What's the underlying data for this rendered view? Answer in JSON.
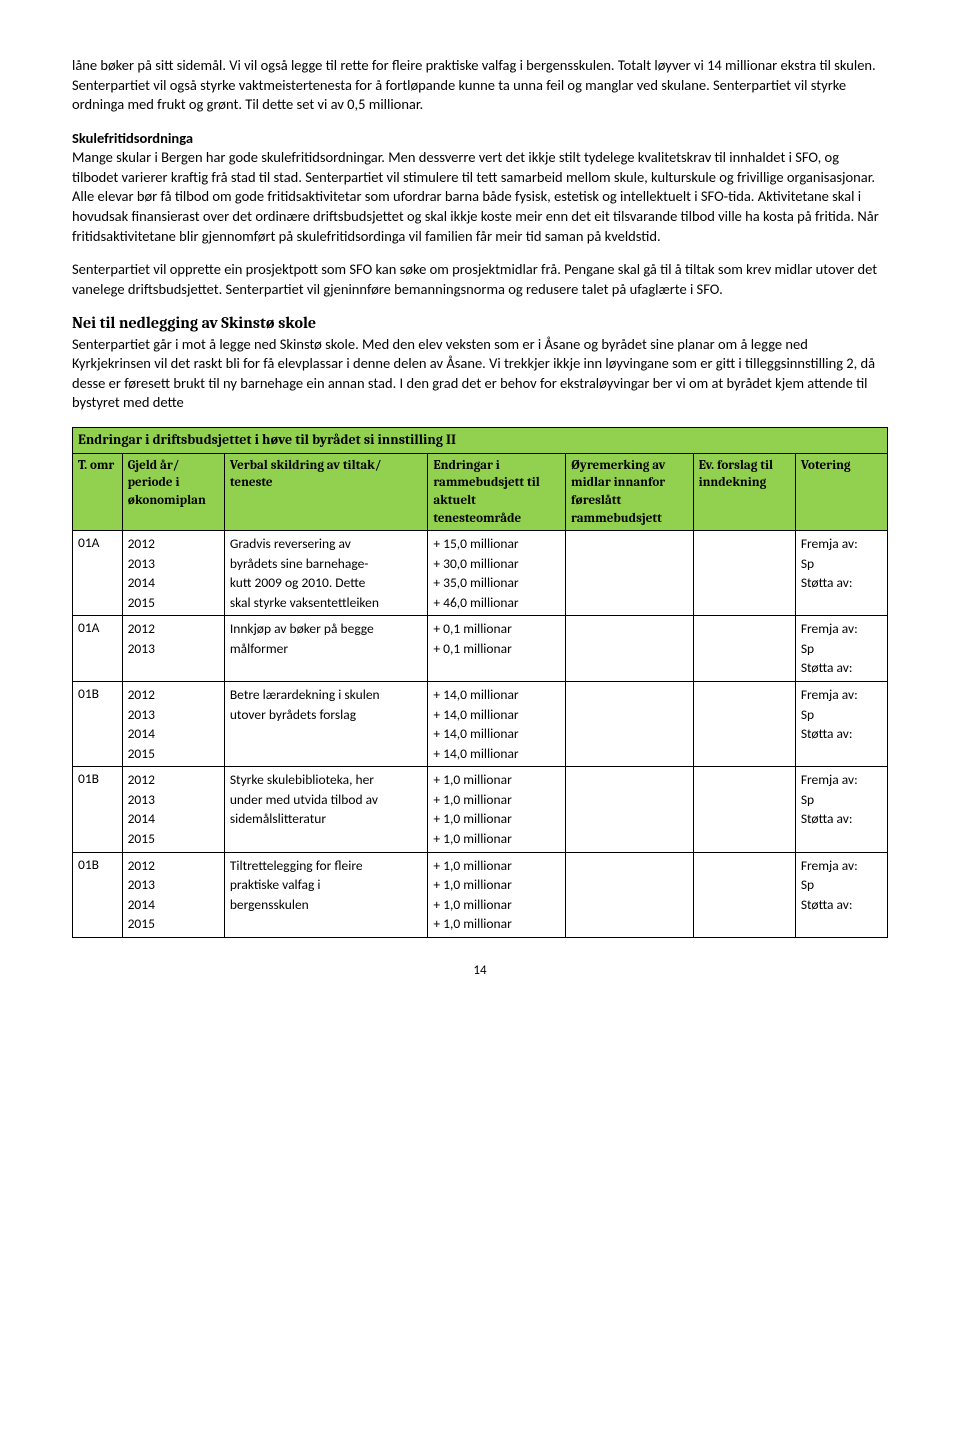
{
  "paragraphs": {
    "p1": "låne bøker på sitt sidemål. Vi vil også legge til rette for fleire praktiske valfag i bergensskulen. Totalt løyver vi 14 millionar ekstra til skulen. Senterpartiet vil også styrke vaktmeistertenesta for å fortløpande kunne ta unna feil og manglar ved skulane. Senterpartiet vil styrke ordninga med frukt og grønt. Til dette set vi av 0,5 millionar.",
    "h1": "Skulefritidsordninga",
    "p2": "Mange skular i Bergen har gode skulefritidsordningar. Men dessverre vert det ikkje stilt tydelege kvalitetskrav til innhaldet i SFO, og tilbodet varierer kraftig frå stad til stad. Senterpartiet vil stimulere til tett samarbeid mellom skule, kulturskule og frivillige organisasjonar. Alle elevar bør få tilbod om gode fritidsaktivitetar som ufordrar barna både fysisk, estetisk og intellektuelt i SFO-tida. Aktivitetane skal i hovudsak finansierast over det ordinære driftsbudsjettet og skal ikkje koste meir enn det eit tilsvarande tilbod ville ha kosta på fritida. Når fritidsaktivitetane blir gjennomført på skulefritidsordinga vil familien får meir tid saman på kveldstid.",
    "p3": "Senterpartiet vil opprette ein prosjektpott som SFO kan søke om prosjektmidlar frå. Pengane skal gå til å tiltak som krev midlar utover det vanelege driftsbudsjettet. Senterpartiet vil gjeninnføre bemanningsnorma og redusere talet på ufaglærte i SFO.",
    "h2": "Nei til nedlegging av Skinstø skole",
    "p4": "Senterpartiet går i mot å legge ned Skinstø skole. Med den elev veksten som er i Åsane og byrådet sine planar om å legge ned Kyrkjekrinsen vil det raskt bli for få elevplassar i denne delen av  Åsane. Vi trekkjer ikkje inn løyvingane som er gitt i tilleggsinnstilling 2, då desse er føresett brukt til ny barnehage ein annan stad. I den grad det er behov for ekstraløyvingar ber vi om at byrådet kjem attende til bystyret med dette"
  },
  "table": {
    "title": "Endringar i driftsbudsjettet i høve til byrådet si innstilling II",
    "headers": {
      "c0": "T. omr",
      "c1": "Gjeld år/ periode i økonomiplan",
      "c2": "Verbal skildring av tiltak/ teneste",
      "c3": "Endringar i rammebudsjett til aktuelt tenesteområde",
      "c4": "Øyremerking av midlar innanfor føreslått rammebudsjett",
      "c5": "Ev. forslag til inndekning",
      "c6": "Votering"
    },
    "rows": [
      {
        "c0": "01A",
        "c1": [
          "2012",
          "2013",
          "2014",
          "2015"
        ],
        "c2": [
          "Gradvis reversering av",
          "byrådets sine barnehage-",
          "kutt 2009 og 2010. Dette",
          "skal styrke vaksentettleiken"
        ],
        "c3": [
          "+ 15,0 millionar",
          "+ 30,0 millionar",
          "+ 35,0 millionar",
          "+ 46,0 millionar"
        ],
        "c4": [],
        "c5": [],
        "c6": [
          "Fremja av:",
          "Sp",
          "Støtta av:"
        ]
      },
      {
        "c0": "01A",
        "c1": [
          "2012",
          "2013"
        ],
        "c2": [
          "Innkjøp av bøker på begge",
          "målformer"
        ],
        "c3": [
          "+ 0,1 millionar",
          "+ 0,1 millionar"
        ],
        "c4": [],
        "c5": [],
        "c6": [
          "Fremja av:",
          "Sp",
          "Støtta av:"
        ]
      },
      {
        "c0": "01B",
        "c1": [
          "2012",
          "2013",
          "2014",
          "2015"
        ],
        "c2": [
          "Betre lærardekning i skulen",
          "utover byrådets forslag"
        ],
        "c3": [
          "+ 14,0 millionar",
          "+ 14,0 millionar",
          "+ 14,0 millionar",
          "+ 14,0 millionar"
        ],
        "c4": [],
        "c5": [],
        "c6": [
          "Fremja av:",
          "Sp",
          "Støtta av:"
        ]
      },
      {
        "c0": "01B",
        "c1": [
          "2012",
          "2013",
          "2014",
          "2015"
        ],
        "c2": [
          "Styrke skulebiblioteka, her",
          "under med utvida tilbod av",
          "sidemålslitteratur"
        ],
        "c3": [
          "+ 1,0 millionar",
          "+ 1,0 millionar",
          "+ 1,0 millionar",
          "+ 1,0 millionar"
        ],
        "c4": [],
        "c5": [],
        "c6": [
          "Fremja av:",
          "Sp",
          "Støtta av:"
        ]
      },
      {
        "c0": "01B",
        "c1": [
          "2012",
          "2013",
          "2014",
          "2015"
        ],
        "c2": [
          "Tiltrettelegging for fleire",
          "praktiske valfag i",
          "bergensskulen"
        ],
        "c3": [
          "+ 1,0 millionar",
          "+ 1,0 millionar",
          "+ 1,0 millionar",
          "+ 1,0 millionar"
        ],
        "c4": [],
        "c5": [],
        "c6": [
          "Fremja av:",
          "Sp",
          "Støtta av:"
        ]
      }
    ]
  },
  "pageNumber": "14"
}
